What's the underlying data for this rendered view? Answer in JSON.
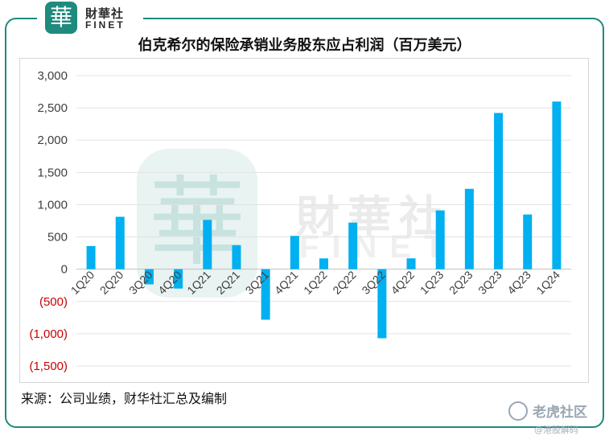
{
  "brand": {
    "seal_char": "華",
    "name_cn": "財華社",
    "name_en": "FINET",
    "accent_color": "#1f8a7e"
  },
  "chart_data": {
    "type": "bar",
    "title": "伯克希尔的保险承销业务股东应占利润（百万美元）",
    "categories": [
      "1Q20",
      "2Q20",
      "3Q20",
      "4Q20",
      "1Q21",
      "2Q21",
      "3Q21",
      "4Q21",
      "1Q22",
      "2Q22",
      "3Q22",
      "4Q22",
      "1Q23",
      "2Q23",
      "3Q23",
      "4Q23",
      "1Q24"
    ],
    "values": [
      359,
      812,
      -235,
      -300,
      764,
      372,
      -783,
      516,
      167,
      722,
      -1070,
      168,
      911,
      1245,
      2421,
      848,
      2598
    ],
    "ylim": [
      -1500,
      3000
    ],
    "yticks": [
      3000,
      2500,
      2000,
      1500,
      1000,
      500,
      0,
      -500,
      -1000,
      -1500
    ],
    "ytick_labels": [
      "3,000",
      "2,500",
      "2,000",
      "1,500",
      "1,000",
      "500",
      "0",
      "(500)",
      "(1,000)",
      "(1,500)"
    ],
    "negative_tick_color": "#cc0000",
    "bar_color": "#00b0f0",
    "grid": true,
    "legend": "none"
  },
  "source_note": "来源：公司业绩，财华社汇总及编制",
  "watermark": {
    "seal_char": "華",
    "name_cn": "財華社",
    "name_en": "FINET"
  },
  "platform": {
    "name": "老虎社区",
    "handle": "@港股解码"
  }
}
